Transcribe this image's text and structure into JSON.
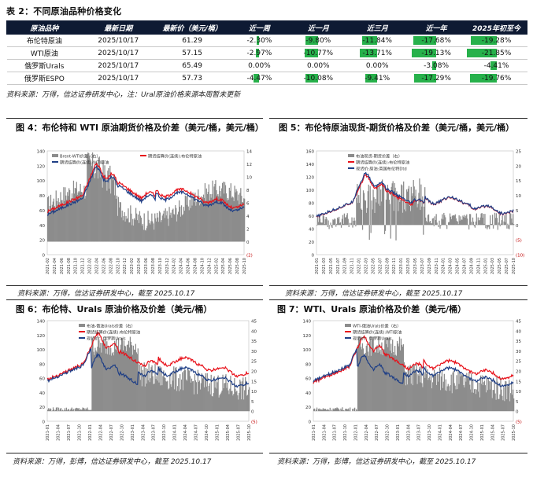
{
  "table_caption": "表 2：不同原油品种价格变化",
  "table": {
    "headers": [
      "原油品种",
      "最新日期",
      "最新价（美元/桶）",
      "近一周",
      "近一月",
      "近三月",
      "近一年",
      "2025年初至今"
    ],
    "rows": [
      {
        "name": "布伦特原油",
        "date": "2025/10/17",
        "price": "61.29",
        "changes": [
          "-2.30%",
          "-9.80%",
          "-11.84%",
          "-17.68%",
          "-19.28%"
        ],
        "values": [
          -2.3,
          -9.8,
          -11.84,
          -17.68,
          -19.28
        ]
      },
      {
        "name": "WTI原油",
        "date": "2025/10/17",
        "price": "57.15",
        "changes": [
          "-2.97%",
          "-10.77%",
          "-13.71%",
          "-19.13%",
          "-21.85%"
        ],
        "values": [
          -2.97,
          -10.77,
          -13.71,
          -19.13,
          -21.85
        ]
      },
      {
        "name": "俄罗斯Urals",
        "date": "2025/10/17",
        "price": "65.49",
        "changes": [
          "0.00%",
          "0.00%",
          "0.00%",
          "-3.08%",
          "-4.41%"
        ],
        "values": [
          0,
          0,
          0,
          -3.08,
          -4.41
        ]
      },
      {
        "name": "俄罗斯ESPO",
        "date": "2025/10/17",
        "price": "57.73",
        "changes": [
          "-4.47%",
          "-10.08%",
          "-9.41%",
          "-17.29%",
          "-19.76%"
        ],
        "values": [
          -4.47,
          -10.08,
          -9.41,
          -17.29,
          -19.76
        ]
      }
    ]
  },
  "table_source": "资料来源：万得，信达证券研发中心，注：Ural原油价格来源本周暂未更新",
  "colors": {
    "header_bg": "#0e1a33",
    "bar_green": "#27b14b",
    "series_red": "#e8111a",
    "series_blue": "#1f3f86",
    "spread_gray": "#8c8c8c"
  },
  "figures": [
    {
      "title": "图 4：布伦特和 WTI 原油期货价格及价差（美元/桶，美元/桶）",
      "source": "资料来源：万得，信达证券研发中心，截至 2025.10.17",
      "legend": [
        "Brent-WTI价差（右）",
        "期货结算价(连续):布伦特原油",
        "期货结算价(连续):WTI原油"
      ],
      "left_ticks": [
        "140",
        "120",
        "100",
        "80",
        "60",
        "40",
        "20",
        "0"
      ],
      "right_ticks": [
        "14",
        "12",
        "10",
        "8",
        "6",
        "4",
        "2",
        "0",
        "(2)"
      ],
      "x_ticks": [
        "2021-02",
        "2021-04",
        "2021-06",
        "2021-08",
        "2021-10",
        "2021-12",
        "2022-02",
        "2022-04",
        "2022-06",
        "2022-08",
        "2022-10",
        "2022-12",
        "2023-02",
        "2023-04",
        "2023-06",
        "2023-08",
        "2023-10",
        "2023-12",
        "2024-02",
        "2024-04",
        "2024-06",
        "2024-08",
        "2024-10",
        "2024-12",
        "2025-02",
        "2025-04",
        "2025-06",
        "2025-08",
        "2025-10"
      ]
    },
    {
      "title": "图 5：布伦特原油现货-期货价格及价差（美元/桶，美元/桶）",
      "source": "资料来源：万得，信达证券研发中心，截至 2025.10.17",
      "legend": [
        "布油现货-期货价差（右）",
        "期货结算价(连续):布伦特原油",
        "现货价:原油:英国布伦特Dtd"
      ],
      "left_ticks": [
        "160",
        "140",
        "120",
        "100",
        "80",
        "60",
        "40",
        "20",
        "0"
      ],
      "right_ticks": [
        "25",
        "20",
        "15",
        "10",
        "5",
        "0",
        "(5)",
        "(10)"
      ],
      "x_ticks": [
        "2021-01",
        "2021-03",
        "2021-05",
        "2021-07",
        "2021-09",
        "2021-11",
        "2022-01",
        "2022-03",
        "2022-05",
        "2022-07",
        "2022-09",
        "2022-11",
        "2023-01",
        "2023-03",
        "2023-05",
        "2023-07",
        "2023-09",
        "2023-11",
        "2024-01",
        "2024-03",
        "2024-05",
        "2024-07",
        "2024-09",
        "2024-11",
        "2025-01",
        "2025-03",
        "2025-05",
        "2025-07",
        "2025-10"
      ]
    },
    {
      "title": "图 6：布伦特、Urals 原油价格及价差（美元/桶）",
      "source": "资料来源：万得，彭博，信达证券研发中心，截至 2025.10.17",
      "legend": [
        "布油-俄油Urals价差（右）",
        "期货结算价(连续):布伦特原油",
        "现货价：俄罗斯Urals"
      ],
      "left_ticks": [
        "140",
        "120",
        "100",
        "80",
        "60",
        "40",
        "20",
        "0"
      ],
      "right_ticks": [
        "45",
        "40",
        "35",
        "30",
        "25",
        "20",
        "15",
        "10",
        "5",
        "0",
        "(5)"
      ],
      "x_ticks": [
        "2021-01",
        "2021-04",
        "2021-07",
        "2021-10",
        "2022-01",
        "2022-04",
        "2022-07",
        "2022-10",
        "2023-01",
        "2023-04",
        "2023-07",
        "2023-10",
        "2024-01",
        "2024-04",
        "2024-07",
        "2024-10",
        "2025-01",
        "2025-04",
        "2025-07",
        "2025-10"
      ]
    },
    {
      "title": "图 7：WTI、Urals 原油价格及价差（美元/桶）",
      "source": "资料来源：万得，彭博，信达证券研发中心，截至 2025.10.17",
      "legend": [
        "WTI-俄油Urals价差（右）",
        "期货结算价(连续):WTI原油",
        "现货价：俄罗斯Urals"
      ],
      "left_ticks": [
        "140",
        "120",
        "100",
        "80",
        "60",
        "40",
        "20",
        "0"
      ],
      "right_ticks": [
        "45",
        "40",
        "35",
        "30",
        "25",
        "20",
        "15",
        "10",
        "5",
        "0",
        "(5)"
      ],
      "x_ticks": [
        "2021-01",
        "2021-04",
        "2021-07",
        "2021-10",
        "2022-01",
        "2022-04",
        "2022-07",
        "2022-10",
        "2023-01",
        "2023-04",
        "2023-07",
        "2023-10",
        "2024-01",
        "2024-04",
        "2024-07",
        "2024-10",
        "2025-01",
        "2025-04",
        "2025-07",
        "2025-10"
      ]
    }
  ]
}
